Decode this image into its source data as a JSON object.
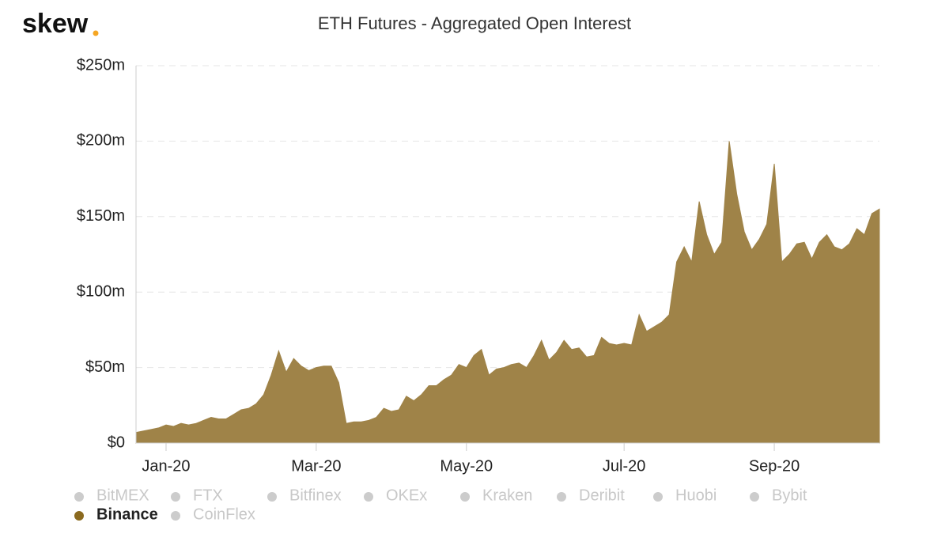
{
  "brand": "skew",
  "chart_data": {
    "type": "area",
    "title": "ETH Futures - Aggregated Open Interest",
    "categories": [
      null,
      null,
      null,
      null,
      "Jan-20",
      null,
      null,
      null,
      null,
      null,
      null,
      null,
      null,
      null,
      null,
      null,
      null,
      null,
      null,
      null,
      null,
      null,
      null,
      null,
      "Mar-20",
      null,
      null,
      null,
      null,
      null,
      null,
      null,
      null,
      null,
      null,
      null,
      null,
      null,
      null,
      null,
      null,
      null,
      null,
      null,
      "May-20",
      null,
      null,
      null,
      null,
      null,
      null,
      null,
      null,
      null,
      null,
      null,
      null,
      null,
      null,
      null,
      null,
      null,
      null,
      null,
      null,
      "Jul-20",
      null,
      null,
      null,
      null,
      null,
      null,
      null,
      null,
      null,
      null,
      null,
      null,
      null,
      null,
      null,
      null,
      null,
      null,
      null,
      "Sep-20",
      null,
      null,
      null,
      null,
      null,
      null,
      null,
      null,
      null,
      null,
      null,
      null,
      null,
      null
    ],
    "ylim": [
      0,
      250
    ],
    "yticks": [
      {
        "value": 0,
        "label": "$0"
      },
      {
        "value": 50,
        "label": "$50m"
      },
      {
        "value": 100,
        "label": "$100m"
      },
      {
        "value": 150,
        "label": "$150m"
      },
      {
        "value": 200,
        "label": "$200m"
      },
      {
        "value": 250,
        "label": "$250m"
      }
    ],
    "grid": true,
    "series": [
      {
        "name": "BitMEX",
        "color": "#cccccc",
        "visible": false
      },
      {
        "name": "FTX",
        "color": "#cccccc",
        "visible": false
      },
      {
        "name": "Bitfinex",
        "color": "#cccccc",
        "visible": false
      },
      {
        "name": "OKEx",
        "color": "#cccccc",
        "visible": false
      },
      {
        "name": "Kraken",
        "color": "#cccccc",
        "visible": false
      },
      {
        "name": "Deribit",
        "color": "#cccccc",
        "visible": false
      },
      {
        "name": "Huobi",
        "color": "#cccccc",
        "visible": false
      },
      {
        "name": "Bybit",
        "color": "#cccccc",
        "visible": false
      },
      {
        "name": "Binance",
        "color": "#9f8348",
        "visible": true,
        "values": [
          7,
          8,
          9,
          10,
          12,
          11,
          13,
          12,
          13,
          15,
          17,
          16,
          16,
          19,
          22,
          23,
          26,
          32,
          45,
          61,
          47,
          56,
          51,
          48,
          50,
          51,
          51,
          40,
          13,
          14,
          14,
          15,
          17,
          23,
          21,
          22,
          31,
          28,
          32,
          38,
          38,
          42,
          45,
          52,
          50,
          58,
          62,
          45,
          49,
          50,
          52,
          53,
          50,
          58,
          68,
          55,
          60,
          68,
          62,
          63,
          57,
          58,
          70,
          66,
          65,
          66,
          65,
          85,
          74,
          77,
          80,
          85,
          120,
          130,
          120,
          160,
          138,
          125,
          133,
          200,
          165,
          140,
          128,
          135,
          145,
          185,
          120,
          125,
          132,
          133,
          122,
          133,
          138,
          130,
          128,
          132,
          142,
          138,
          152,
          155
        ]
      },
      {
        "name": "CoinFlex",
        "color": "#cccccc",
        "visible": false
      }
    ]
  }
}
